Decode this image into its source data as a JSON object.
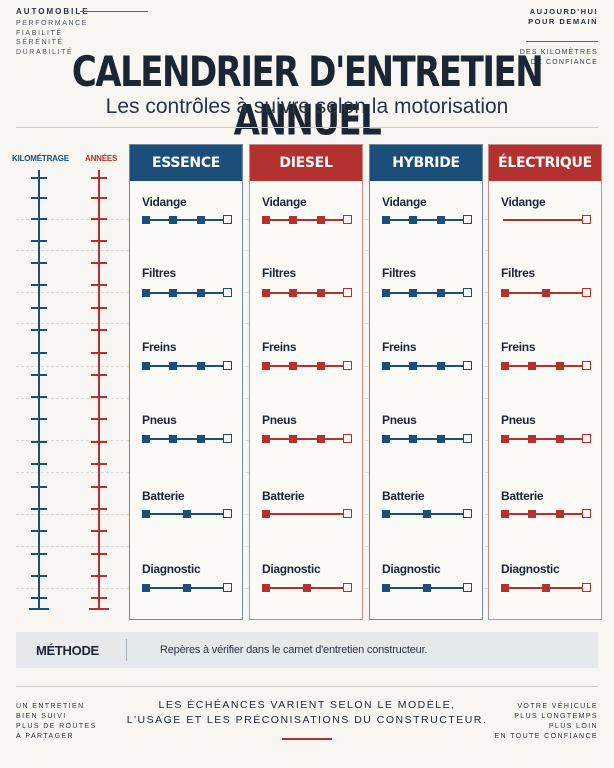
{
  "header": {
    "brand": "AUTOMOBILE",
    "taglines": [
      "PERFORMANCE",
      "FIABILITÉ",
      "SÉRÉNITÉ",
      "DURABILITÉ"
    ],
    "top_right": [
      "AUJOURD'HUI",
      "POUR DEMAIN"
    ],
    "top_right_note": [
      "DES KILOMÈTRES",
      "DE CONFIANCE"
    ]
  },
  "title": "CALENDRIER D'ENTRETIEN ANNUEL",
  "subtitle": "Les contrôles à suivre selon la motorisation",
  "rulers": {
    "km_label": "KILOMÉTRAGE",
    "years_label": "ANNÉES"
  },
  "columns": [
    {
      "title": "ESSENCE",
      "tone": "blue",
      "items": [
        {
          "label": "Vidange",
          "marks": 3
        },
        {
          "label": "Filtres",
          "marks": 3
        },
        {
          "label": "Freins",
          "marks": 3
        },
        {
          "label": "Pneus",
          "marks": 3
        },
        {
          "label": "Batterie",
          "marks": 2
        },
        {
          "label": "Diagnostic",
          "marks": 2
        }
      ]
    },
    {
      "title": "DIESEL",
      "tone": "red",
      "items": [
        {
          "label": "Vidange",
          "marks": 3
        },
        {
          "label": "Filtres",
          "marks": 3
        },
        {
          "label": "Freins",
          "marks": 3
        },
        {
          "label": "Pneus",
          "marks": 3
        },
        {
          "label": "Batterie",
          "marks": 1
        },
        {
          "label": "Diagnostic",
          "marks": 2
        }
      ]
    },
    {
      "title": "HYBRIDE",
      "tone": "blue",
      "items": [
        {
          "label": "Vidange",
          "marks": 3
        },
        {
          "label": "Filtres",
          "marks": 3
        },
        {
          "label": "Freins",
          "marks": 3
        },
        {
          "label": "Pneus",
          "marks": 3
        },
        {
          "label": "Batterie",
          "marks": 2
        },
        {
          "label": "Diagnostic",
          "marks": 2
        }
      ]
    },
    {
      "title": "ÉLECTRIQUE",
      "tone": "red",
      "items": [
        {
          "label": "Vidange",
          "marks": 0
        },
        {
          "label": "Filtres",
          "marks": 2
        },
        {
          "label": "Freins",
          "marks": 3
        },
        {
          "label": "Pneus",
          "marks": 3
        },
        {
          "label": "Batterie",
          "marks": 3
        },
        {
          "label": "Diagnostic",
          "marks": 2
        }
      ]
    }
  ],
  "method": {
    "label": "MÉTHODE",
    "text": "Repères à vérifier dans le carnet d'entretien constructeur."
  },
  "footer": {
    "left": [
      "UN ENTRETIEN",
      "BIEN SUIVI",
      "PLUS DE ROUTES",
      "À PARTAGER"
    ],
    "center": [
      "LES ÉCHÉANCES VARIENT SELON LE MODÈLE,",
      "L'USAGE ET LES PRÉCONISATIONS DU CONSTRUCTEUR."
    ],
    "right": [
      "VOTRE VÉHICULE",
      "PLUS LONGTEMPS",
      "PLUS LOIN",
      "EN TOUTE CONFIANCE"
    ]
  },
  "colors": {
    "blue": "#1b4f7a",
    "red": "#b3312f",
    "background": "#f7f6f2"
  }
}
